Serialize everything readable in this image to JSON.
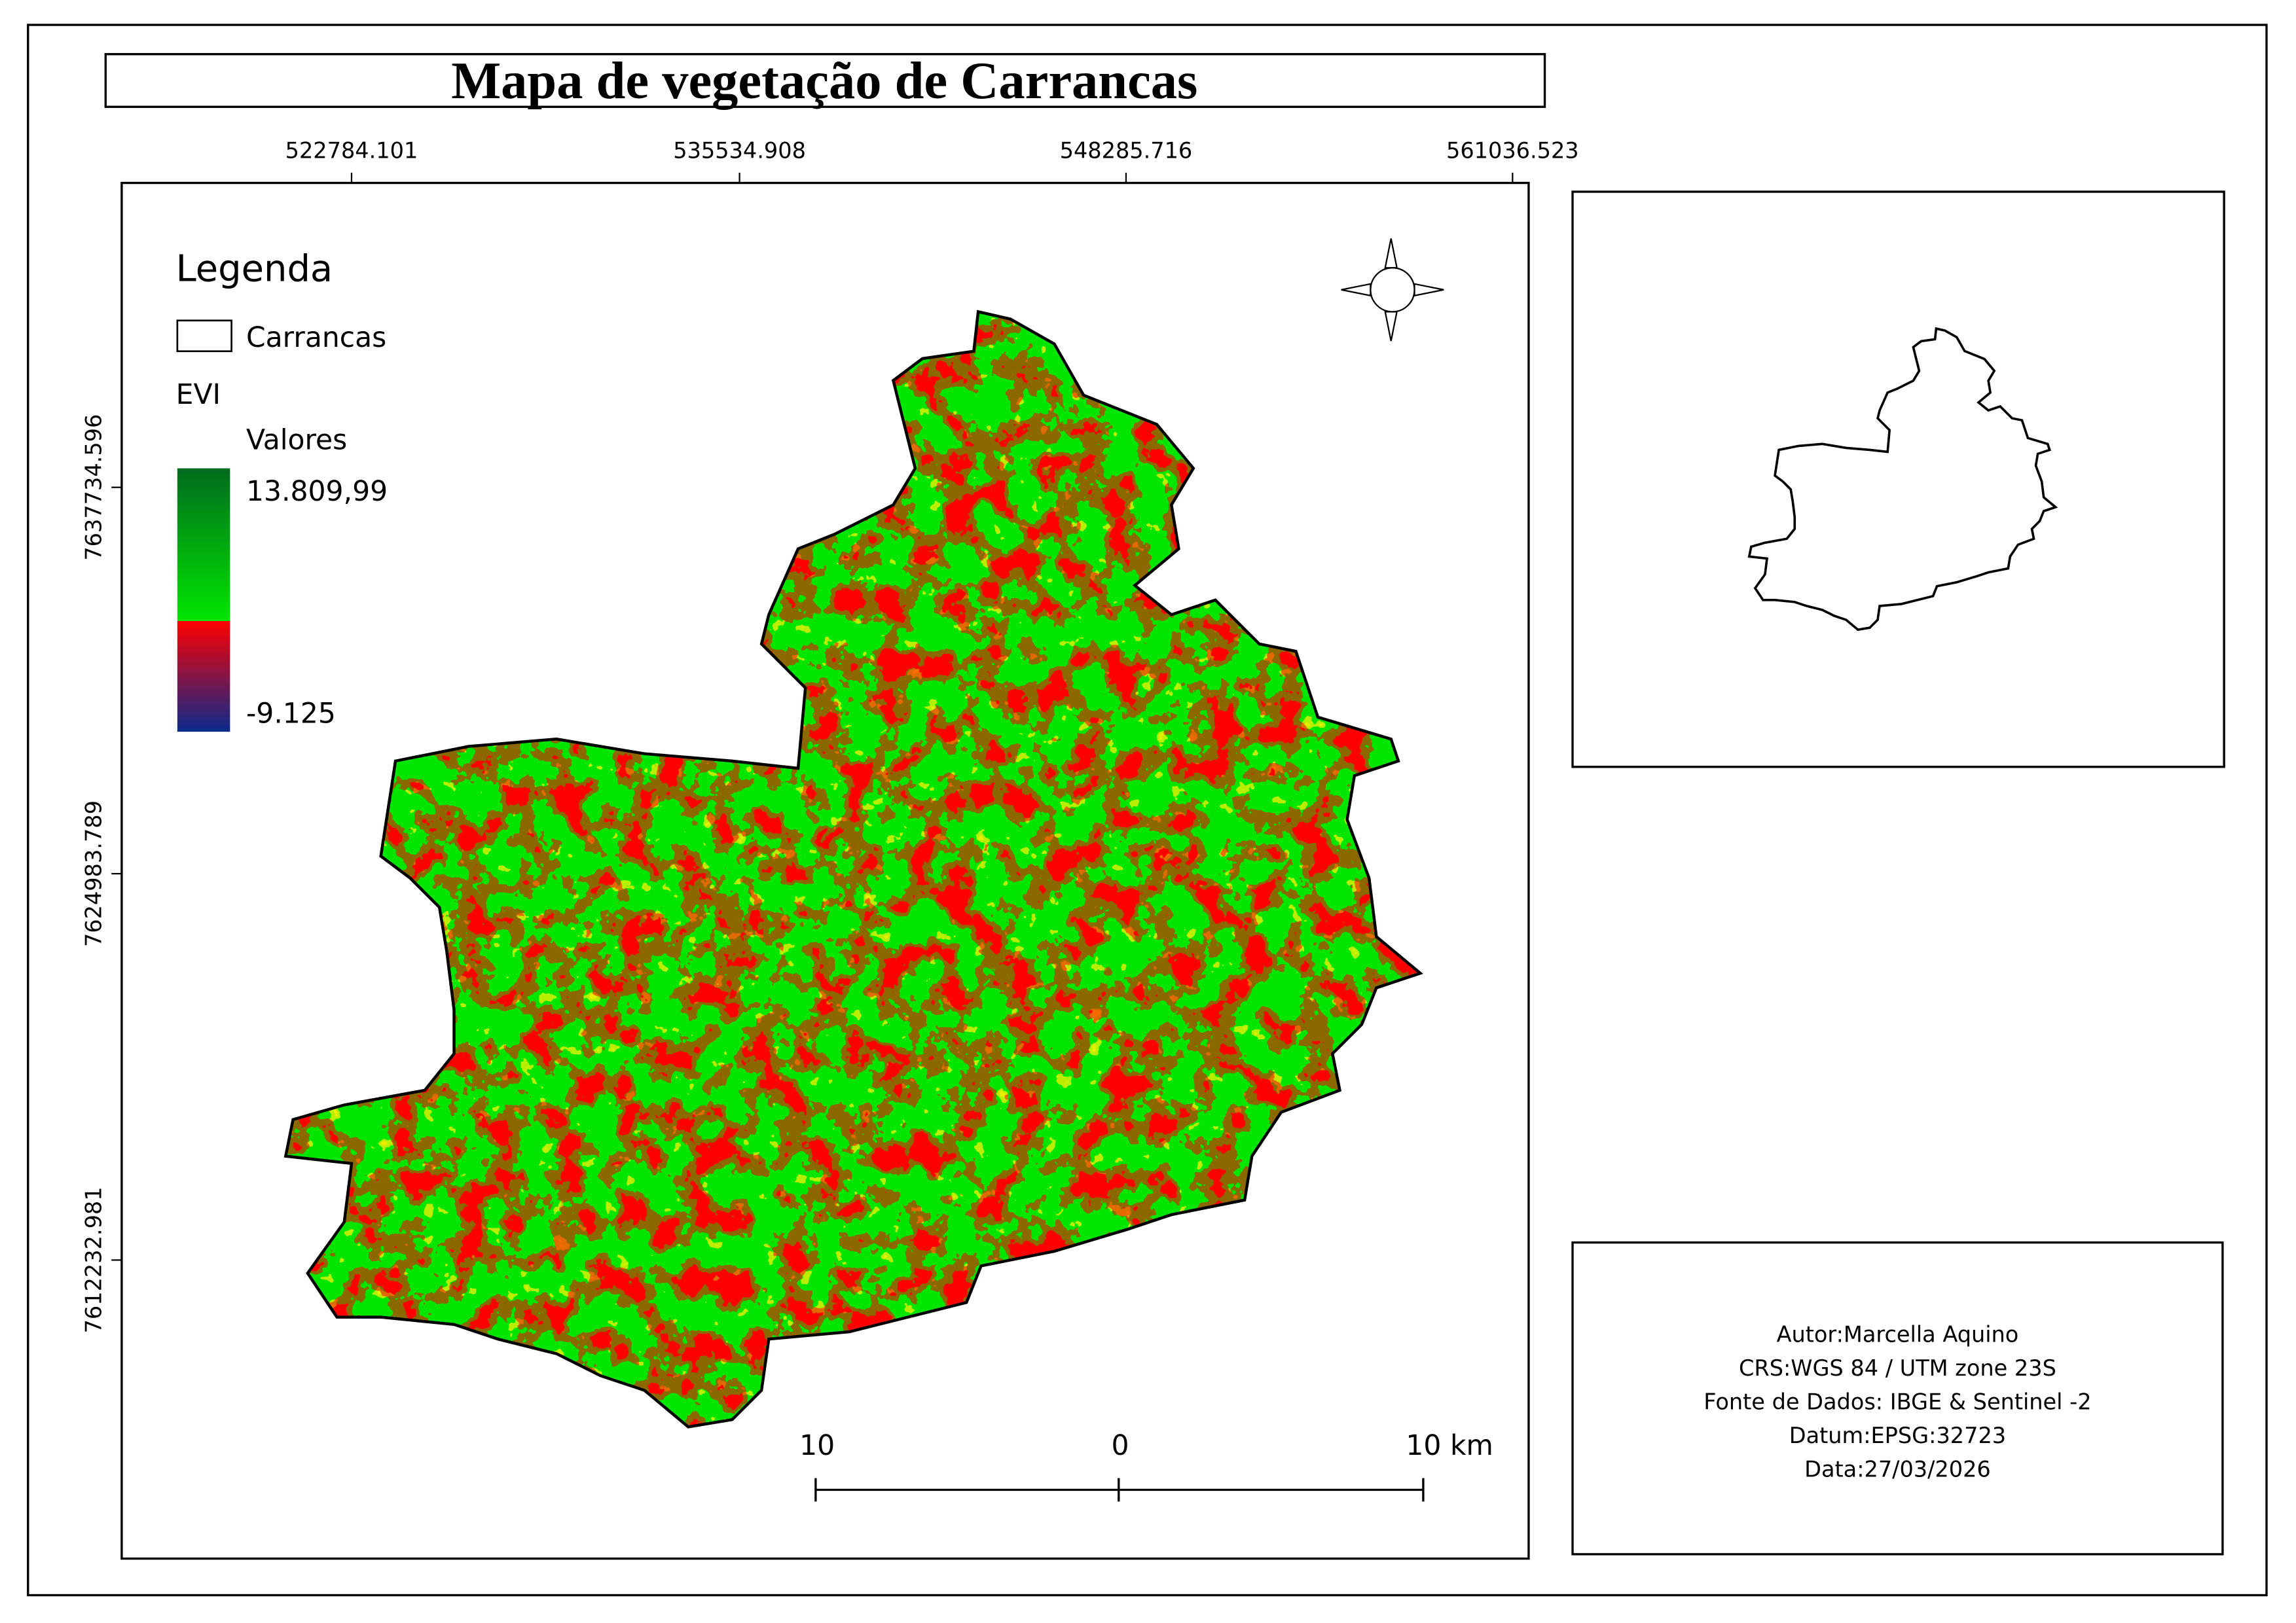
{
  "title": "Mapa de vegetação de Carrancas",
  "map": {
    "x_labels": [
      "522784.101",
      "535534.908",
      "548285.716",
      "561036.523"
    ],
    "y_labels": [
      "7637734.596",
      "7624983.789",
      "7612232.981"
    ]
  },
  "legend": {
    "title": "Legenda",
    "boundary_label": "Carrancas",
    "layer": "EVI",
    "values_label": "Valores",
    "max": "13.809,99",
    "min": "-9.125"
  },
  "scale_bar": {
    "labels": [
      "10",
      "0",
      "10 km"
    ]
  },
  "info": {
    "lines": [
      "Autor:Marcella Aquino",
      "CRS:WGS 84 / UTM zone 23S",
      "Fonte de Dados: IBGE & Sentinel -2",
      "Datum:EPSG:32723",
      "Data:27/03/2026"
    ]
  }
}
